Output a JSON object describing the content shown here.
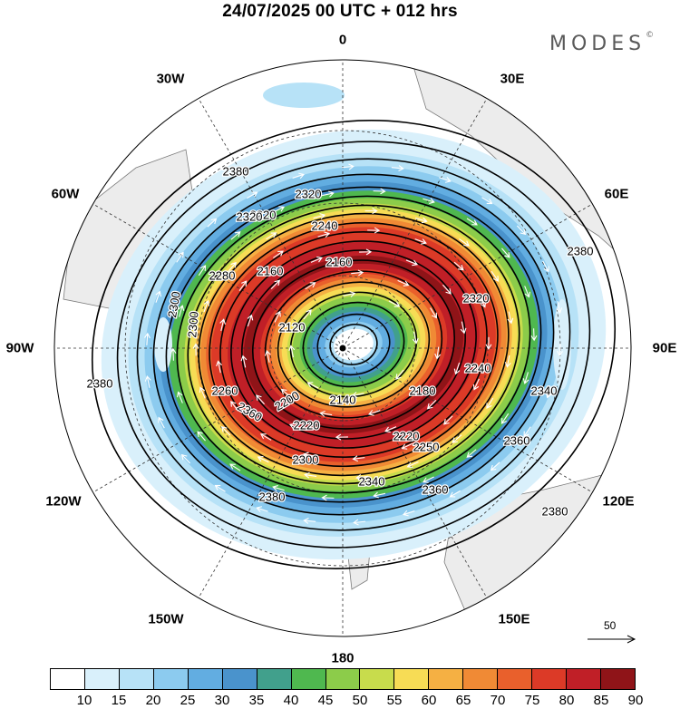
{
  "header": {
    "title": "24/07/2025  00 UTC  + 012 hrs",
    "brand": "MODES",
    "brand_mark": "©"
  },
  "map": {
    "projection": "south-polar-stereographic",
    "longitude_labels": [
      "0",
      "30E",
      "60E",
      "90E",
      "120E",
      "150E",
      "180",
      "150W",
      "120W",
      "90W",
      "60W",
      "30W"
    ],
    "contour_labels": [
      "2120",
      "2140",
      "2160",
      "2160",
      "2180",
      "2200",
      "2220",
      "2220",
      "2220",
      "2240",
      "2240",
      "2250",
      "2260",
      "2280",
      "2300",
      "2300",
      "2300",
      "2320",
      "2320",
      "2320",
      "2340",
      "2340",
      "2360",
      "2360",
      "2360",
      "2380",
      "2380",
      "2380",
      "2380",
      "2380"
    ],
    "wind_reference": "50",
    "variable": "wind speed (shaded) and geopotential height (contours)"
  },
  "colorbar": {
    "ticks": [
      "10",
      "15",
      "20",
      "25",
      "30",
      "35",
      "40",
      "45",
      "50",
      "55",
      "60",
      "65",
      "70",
      "75",
      "80",
      "85",
      "90"
    ],
    "colors": [
      "#ffffff",
      "#d9f0fb",
      "#b7e2f7",
      "#8ccbef",
      "#62ade1",
      "#4a93cc",
      "#41a08c",
      "#4fb84f",
      "#8ccc4a",
      "#c8dc4c",
      "#f7dc55",
      "#f5b043",
      "#f08a35",
      "#e9602c",
      "#dc3a27",
      "#c01f27",
      "#8f1418"
    ]
  }
}
